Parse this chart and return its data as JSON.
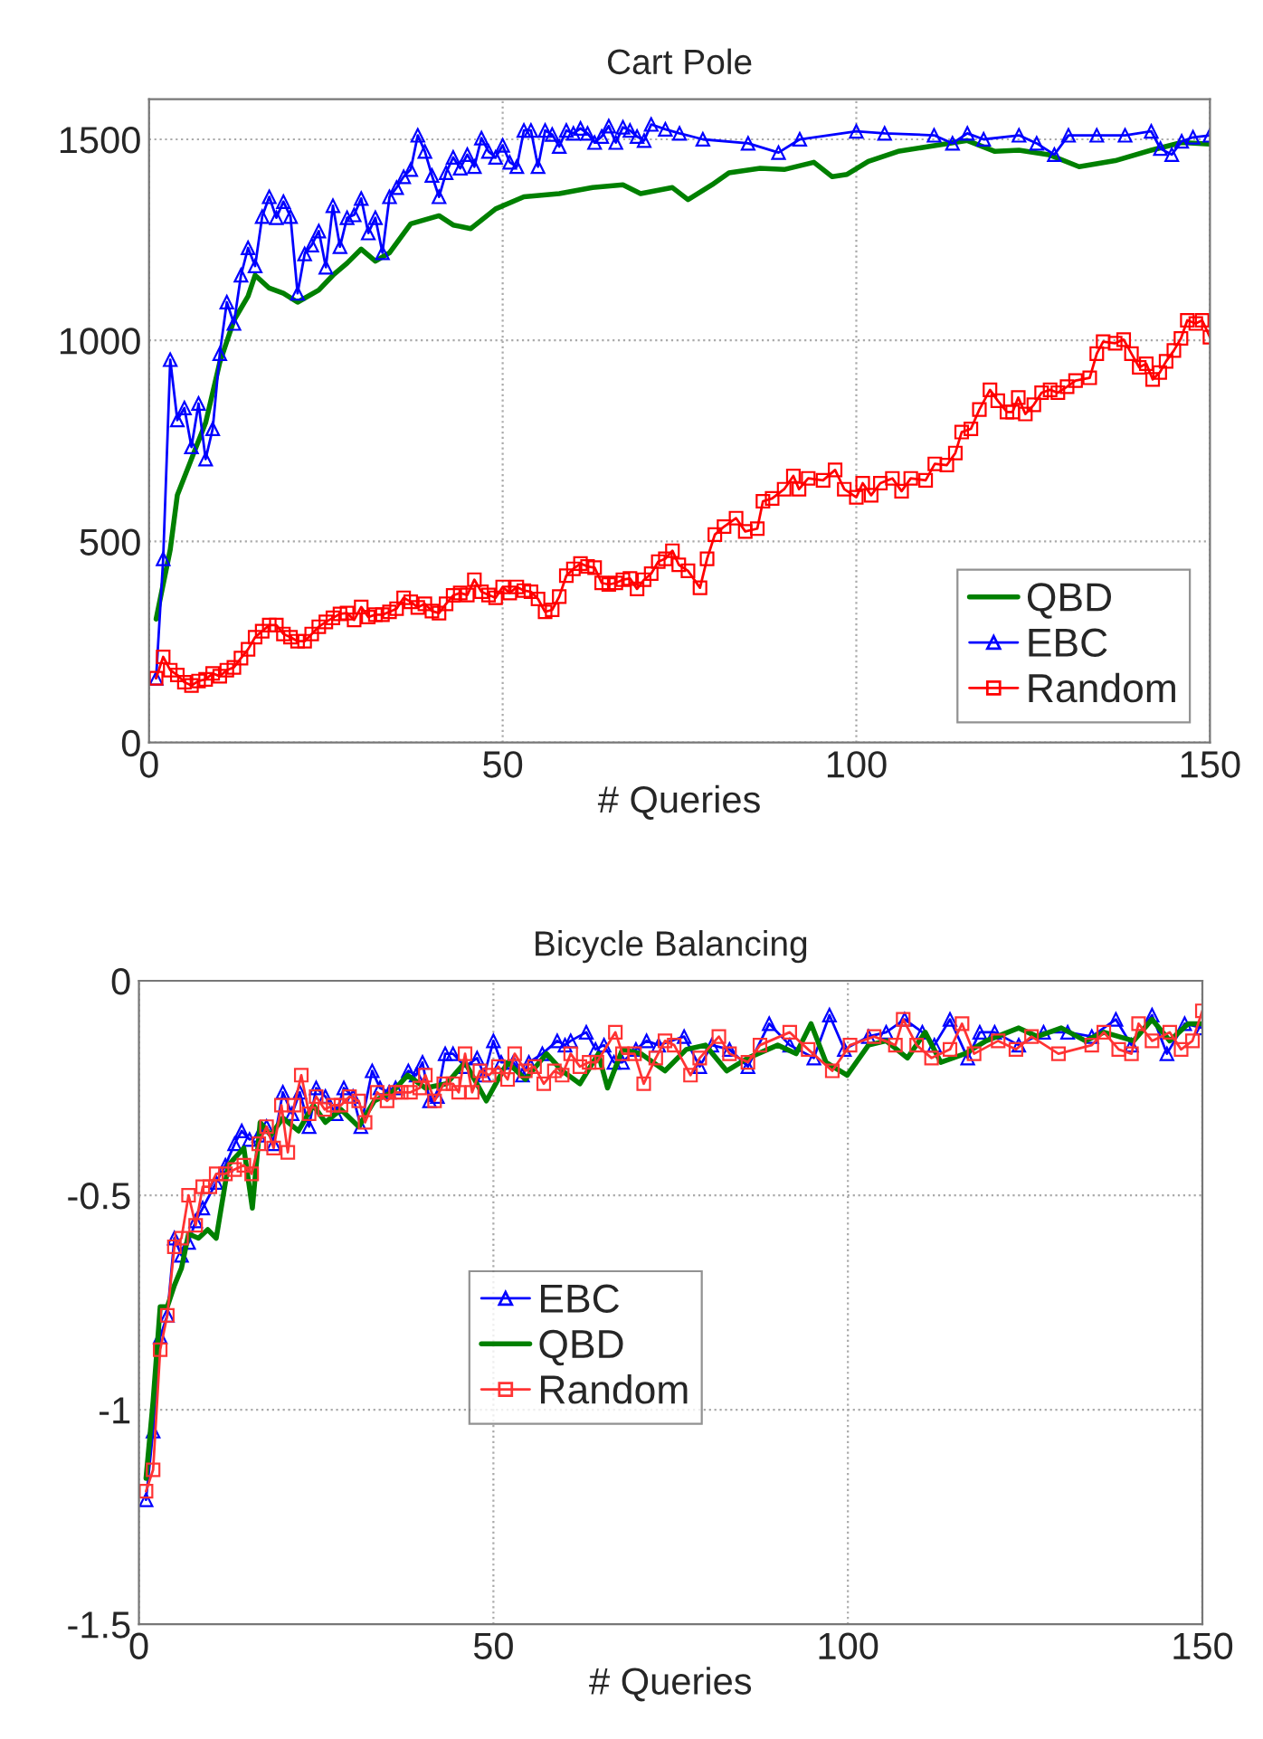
{
  "chart_data": [
    {
      "type": "line",
      "title": "Cart Pole",
      "xlabel": "# Queries",
      "xlim": [
        0,
        150
      ],
      "xticks": [
        0,
        50,
        100,
        150
      ],
      "ylim": [
        0,
        1600
      ],
      "yticks": [
        0,
        500,
        1000,
        1500
      ],
      "grid": true,
      "legend": "bottom right",
      "series": [
        {
          "name": "QBD",
          "color": "#008000",
          "marker": "none",
          "x": [
            1,
            3,
            4,
            6,
            8,
            10,
            12,
            14,
            15,
            17,
            19,
            21,
            24,
            26,
            28,
            30,
            32,
            34,
            37,
            41,
            43,
            45.5,
            49,
            53,
            58,
            62.7,
            67,
            69.5,
            74,
            76.2,
            79.6,
            82,
            86.4,
            89.8,
            94,
            96.6,
            98.7,
            101.7,
            105.9,
            110.2,
            115.7,
            119.6,
            123,
            127.2,
            131.5,
            136.6,
            141.7,
            146,
            150
          ],
          "values": [
            307,
            480,
            615,
            705,
            795,
            945,
            1050,
            1110,
            1162,
            1130,
            1117,
            1095,
            1125,
            1162,
            1192,
            1227,
            1197,
            1218,
            1290,
            1310,
            1287,
            1278,
            1327,
            1357,
            1365,
            1380,
            1387,
            1365,
            1380,
            1350,
            1387,
            1417,
            1428,
            1425,
            1443,
            1407,
            1413,
            1445,
            1470,
            1482,
            1497,
            1470,
            1473,
            1462,
            1432,
            1447,
            1473,
            1492,
            1488
          ]
        },
        {
          "name": "EBC",
          "color": "#0000ff",
          "marker": "triangle",
          "x": [
            1,
            2,
            3,
            4,
            5,
            6,
            7,
            8,
            9,
            10,
            11,
            12,
            13,
            14,
            15,
            16,
            17,
            18,
            19,
            20,
            21,
            22,
            23,
            24,
            25,
            26,
            27,
            28,
            29,
            30,
            31,
            32,
            33,
            34,
            35,
            36,
            37,
            38,
            39,
            40,
            41,
            42,
            43,
            44,
            45,
            46,
            47,
            48,
            49,
            50,
            51,
            52,
            53,
            54,
            55,
            56,
            57,
            58,
            59,
            60,
            61,
            62,
            63,
            64,
            65,
            66,
            67,
            68,
            69,
            70,
            71,
            73,
            75,
            78.3,
            84.7,
            89,
            92,
            100,
            104,
            111,
            113.6,
            115.7,
            118,
            123,
            125.5,
            128,
            130,
            134,
            138,
            141.7,
            143,
            144.6,
            146,
            147.6,
            150
          ],
          "values": [
            160,
            457,
            952,
            802,
            832,
            735,
            843,
            705,
            780,
            967,
            1095,
            1042,
            1162,
            1230,
            1185,
            1308,
            1357,
            1305,
            1345,
            1308,
            1117,
            1215,
            1237,
            1272,
            1182,
            1335,
            1233,
            1305,
            1312,
            1353,
            1267,
            1305,
            1218,
            1357,
            1380,
            1407,
            1425,
            1510,
            1470,
            1410,
            1357,
            1417,
            1455,
            1428,
            1462,
            1432,
            1503,
            1470,
            1455,
            1485,
            1443,
            1432,
            1522,
            1522,
            1432,
            1522,
            1512,
            1482,
            1522,
            1515,
            1527,
            1515,
            1492,
            1507,
            1533,
            1492,
            1530,
            1522,
            1507,
            1497,
            1537,
            1525,
            1515,
            1500,
            1490,
            1467,
            1500,
            1520,
            1515,
            1510,
            1490,
            1515,
            1500,
            1510,
            1490,
            1462,
            1510,
            1510,
            1510,
            1520,
            1477,
            1462,
            1495,
            1505,
            1510
          ]
        },
        {
          "name": "Random",
          "color": "#ff0000",
          "marker": "square",
          "x": [
            1,
            2,
            3,
            4,
            5,
            6,
            7,
            8,
            9,
            10,
            11,
            12,
            13,
            14,
            15,
            16,
            17,
            18,
            19,
            20,
            21,
            22,
            23,
            24,
            25,
            26,
            27,
            28,
            29,
            30,
            31,
            32,
            33,
            34,
            35,
            36,
            37,
            38,
            39,
            40,
            41,
            42,
            43,
            44,
            45,
            46,
            47,
            48,
            49,
            50,
            51,
            52,
            53,
            54,
            55,
            56,
            57,
            58,
            59,
            60,
            61,
            62,
            63,
            64,
            65,
            66,
            67,
            68,
            69,
            70,
            71,
            72,
            73,
            74,
            74.9,
            76.2,
            77.9,
            78.9,
            80,
            81.3,
            83,
            84.3,
            86,
            86.8,
            88.1,
            89.8,
            91.1,
            91.9,
            93.2,
            95.3,
            97,
            98.3,
            100,
            100.9,
            102.1,
            103.4,
            105.1,
            106.4,
            107.7,
            109.8,
            111.1,
            112.8,
            114,
            114.9,
            116.2,
            117.4,
            118.9,
            120,
            121.3,
            122.1,
            122.9,
            123.9,
            125.1,
            126.2,
            127.4,
            128.5,
            129.8,
            131,
            133,
            134,
            134.9,
            136.6,
            137.8,
            138.9,
            140,
            141,
            141.9,
            142.9,
            143.8,
            144.9,
            145.9,
            146.8,
            148,
            148.9,
            150
          ],
          "values": [
            160,
            213,
            180,
            168,
            150,
            142,
            153,
            157,
            172,
            165,
            180,
            187,
            210,
            232,
            262,
            277,
            292,
            292,
            270,
            262,
            252,
            252,
            270,
            288,
            300,
            310,
            320,
            322,
            305,
            337,
            312,
            318,
            318,
            325,
            333,
            360,
            350,
            336,
            345,
            327,
            322,
            345,
            366,
            372,
            367,
            405,
            375,
            367,
            360,
            387,
            372,
            387,
            378,
            375,
            357,
            325,
            330,
            363,
            415,
            432,
            445,
            438,
            435,
            397,
            393,
            397,
            405,
            408,
            382,
            405,
            420,
            450,
            457,
            477,
            442,
            427,
            385,
            457,
            517,
            537,
            558,
            525,
            532,
            600,
            607,
            630,
            663,
            630,
            657,
            652,
            678,
            630,
            610,
            645,
            615,
            645,
            657,
            625,
            657,
            652,
            693,
            690,
            720,
            772,
            780,
            828,
            877,
            850,
            822,
            822,
            858,
            817,
            840,
            870,
            877,
            870,
            885,
            900,
            907,
            967,
            997,
            993,
            1002,
            967,
            933,
            942,
            903,
            920,
            948,
            975,
            1005,
            1050,
            1042,
            1050,
            1008
          ]
        }
      ]
    },
    {
      "type": "line",
      "title": "Bicycle Balancing",
      "xlabel": "# Queries",
      "xlim": [
        0,
        150
      ],
      "xticks": [
        0,
        50,
        100,
        150
      ],
      "ylim": [
        -1.5,
        0
      ],
      "yticks": [
        {
          "value": -1.5,
          "label": "-1.5"
        },
        {
          "value": -1,
          "label": "-1"
        },
        {
          "value": -0.5,
          "label": "-0.5"
        },
        0
      ],
      "grid": true,
      "legend": "center",
      "series": [
        {
          "name": "EBC",
          "color": "#0000ff",
          "marker": "triangle",
          "x": [
            1,
            2,
            3,
            4,
            5,
            6,
            7,
            8,
            9,
            10.9,
            12.2,
            13.5,
            14.5,
            15.6,
            16.9,
            18,
            19,
            20.3,
            21.6,
            22.7,
            24,
            25,
            26.3,
            27.8,
            28.9,
            30.2,
            31.3,
            32.9,
            34,
            35.3,
            36.2,
            38,
            39.1,
            40,
            41,
            42.1,
            43.2,
            44.3,
            46,
            47.7,
            48.7,
            50,
            51.1,
            52.8,
            54.1,
            55,
            56.9,
            59,
            60.1,
            60.9,
            63.1,
            64.4,
            65.6,
            67,
            68.2,
            70.1,
            71.6,
            73.3,
            76.9,
            79.1,
            80.8,
            83.3,
            85.9,
            88.9,
            91.8,
            95.2,
            97.4,
            99.5,
            102.9,
            105.4,
            108,
            110.5,
            112.2,
            114.4,
            116.9,
            118.6,
            120.7,
            124.1,
            127.6,
            131,
            134.4,
            137.8,
            140,
            142.9,
            145,
            147.5,
            150
          ],
          "values": [
            -1.21,
            -1.05,
            -0.83,
            -0.78,
            -0.6,
            -0.64,
            -0.61,
            -0.56,
            -0.53,
            -0.47,
            -0.43,
            -0.38,
            -0.35,
            -0.37,
            -0.36,
            -0.34,
            -0.38,
            -0.26,
            -0.31,
            -0.26,
            -0.34,
            -0.25,
            -0.27,
            -0.31,
            -0.25,
            -0.27,
            -0.34,
            -0.21,
            -0.25,
            -0.26,
            -0.25,
            -0.21,
            -0.22,
            -0.19,
            -0.28,
            -0.27,
            -0.17,
            -0.17,
            -0.2,
            -0.18,
            -0.22,
            -0.14,
            -0.19,
            -0.19,
            -0.22,
            -0.19,
            -0.17,
            -0.14,
            -0.15,
            -0.14,
            -0.12,
            -0.16,
            -0.15,
            -0.19,
            -0.19,
            -0.16,
            -0.14,
            -0.15,
            -0.13,
            -0.2,
            -0.15,
            -0.16,
            -0.2,
            -0.1,
            -0.15,
            -0.18,
            -0.08,
            -0.16,
            -0.13,
            -0.12,
            -0.09,
            -0.12,
            -0.15,
            -0.09,
            -0.18,
            -0.12,
            -0.12,
            -0.15,
            -0.12,
            -0.12,
            -0.13,
            -0.09,
            -0.15,
            -0.08,
            -0.17,
            -0.1,
            -0.11
          ]
        },
        {
          "name": "QBD",
          "color": "#008000",
          "marker": "none",
          "x": [
            1,
            2,
            3,
            4,
            5,
            6,
            7,
            8.4,
            9.7,
            10.9,
            12.6,
            14.8,
            16,
            17.1,
            18.6,
            20.3,
            22.5,
            24.6,
            26.3,
            28.5,
            31,
            33.2,
            35.7,
            37.9,
            40.4,
            43.4,
            46,
            49,
            52,
            54.5,
            57.5,
            59.7,
            62.2,
            64.8,
            66.1,
            68.2,
            70.8,
            74.2,
            77.2,
            79.9,
            82.9,
            85.9,
            90.1,
            92.7,
            94.8,
            96.9,
            99.9,
            102.9,
            105.4,
            108.4,
            110.9,
            113.1,
            116.5,
            119.5,
            124.1,
            126.7,
            130.1,
            133.5,
            136.1,
            140.3,
            142.9,
            145.4,
            148,
            150
          ],
          "values": [
            -1.16,
            -0.98,
            -0.76,
            -0.76,
            -0.71,
            -0.67,
            -0.59,
            -0.6,
            -0.58,
            -0.6,
            -0.43,
            -0.39,
            -0.53,
            -0.33,
            -0.36,
            -0.32,
            -0.35,
            -0.29,
            -0.33,
            -0.3,
            -0.34,
            -0.28,
            -0.26,
            -0.22,
            -0.25,
            -0.24,
            -0.19,
            -0.28,
            -0.19,
            -0.23,
            -0.17,
            -0.21,
            -0.24,
            -0.17,
            -0.25,
            -0.16,
            -0.17,
            -0.21,
            -0.16,
            -0.15,
            -0.21,
            -0.18,
            -0.15,
            -0.17,
            -0.1,
            -0.19,
            -0.22,
            -0.15,
            -0.14,
            -0.18,
            -0.12,
            -0.19,
            -0.17,
            -0.14,
            -0.11,
            -0.13,
            -0.11,
            -0.14,
            -0.12,
            -0.14,
            -0.09,
            -0.14,
            -0.1,
            -0.1
          ]
        },
        {
          "name": "Random",
          "color": "#ff3333",
          "marker": "square",
          "x": [
            1,
            2,
            3,
            4,
            5,
            6,
            7,
            8,
            9,
            10,
            10.9,
            12.2,
            13.5,
            14.8,
            15.9,
            16.9,
            18,
            19,
            20.1,
            21,
            21.9,
            22.9,
            24,
            25,
            26.2,
            27.4,
            28.5,
            29.7,
            31,
            31.9,
            33.6,
            35,
            36.2,
            37,
            38.3,
            39.6,
            40.4,
            41.7,
            43,
            44.3,
            45.1,
            46,
            47,
            48.1,
            49.4,
            50.7,
            52,
            53,
            54.5,
            55.8,
            57.1,
            58.6,
            59.7,
            60.9,
            62.2,
            63.5,
            64.6,
            67.2,
            68.2,
            69.9,
            71.2,
            72.9,
            74.2,
            75.5,
            77.8,
            79.1,
            81.8,
            83.3,
            85.9,
            87.6,
            91.8,
            94.4,
            97.8,
            100.3,
            103.7,
            106.7,
            107.8,
            109.7,
            111.8,
            114.4,
            116.1,
            117.8,
            121.2,
            123.7,
            125.9,
            129.7,
            134.4,
            136.1,
            138.2,
            140,
            141,
            142.9,
            145.4,
            147,
            148.6,
            150
          ],
          "values": [
            -1.19,
            -1.14,
            -0.86,
            -0.78,
            -0.62,
            -0.6,
            -0.5,
            -0.57,
            -0.48,
            -0.48,
            -0.45,
            -0.45,
            -0.44,
            -0.43,
            -0.45,
            -0.38,
            -0.34,
            -0.39,
            -0.29,
            -0.4,
            -0.29,
            -0.22,
            -0.31,
            -0.27,
            -0.3,
            -0.29,
            -0.29,
            -0.27,
            -0.28,
            -0.33,
            -0.26,
            -0.28,
            -0.26,
            -0.26,
            -0.26,
            -0.25,
            -0.22,
            -0.28,
            -0.24,
            -0.24,
            -0.26,
            -0.17,
            -0.26,
            -0.21,
            -0.22,
            -0.2,
            -0.23,
            -0.17,
            -0.21,
            -0.2,
            -0.24,
            -0.21,
            -0.22,
            -0.17,
            -0.2,
            -0.19,
            -0.19,
            -0.12,
            -0.17,
            -0.17,
            -0.24,
            -0.18,
            -0.14,
            -0.15,
            -0.22,
            -0.18,
            -0.13,
            -0.17,
            -0.19,
            -0.15,
            -0.12,
            -0.16,
            -0.21,
            -0.15,
            -0.13,
            -0.15,
            -0.09,
            -0.15,
            -0.18,
            -0.16,
            -0.1,
            -0.17,
            -0.14,
            -0.16,
            -0.13,
            -0.17,
            -0.15,
            -0.12,
            -0.16,
            -0.17,
            -0.1,
            -0.14,
            -0.12,
            -0.16,
            -0.14,
            -0.07
          ]
        }
      ]
    }
  ]
}
